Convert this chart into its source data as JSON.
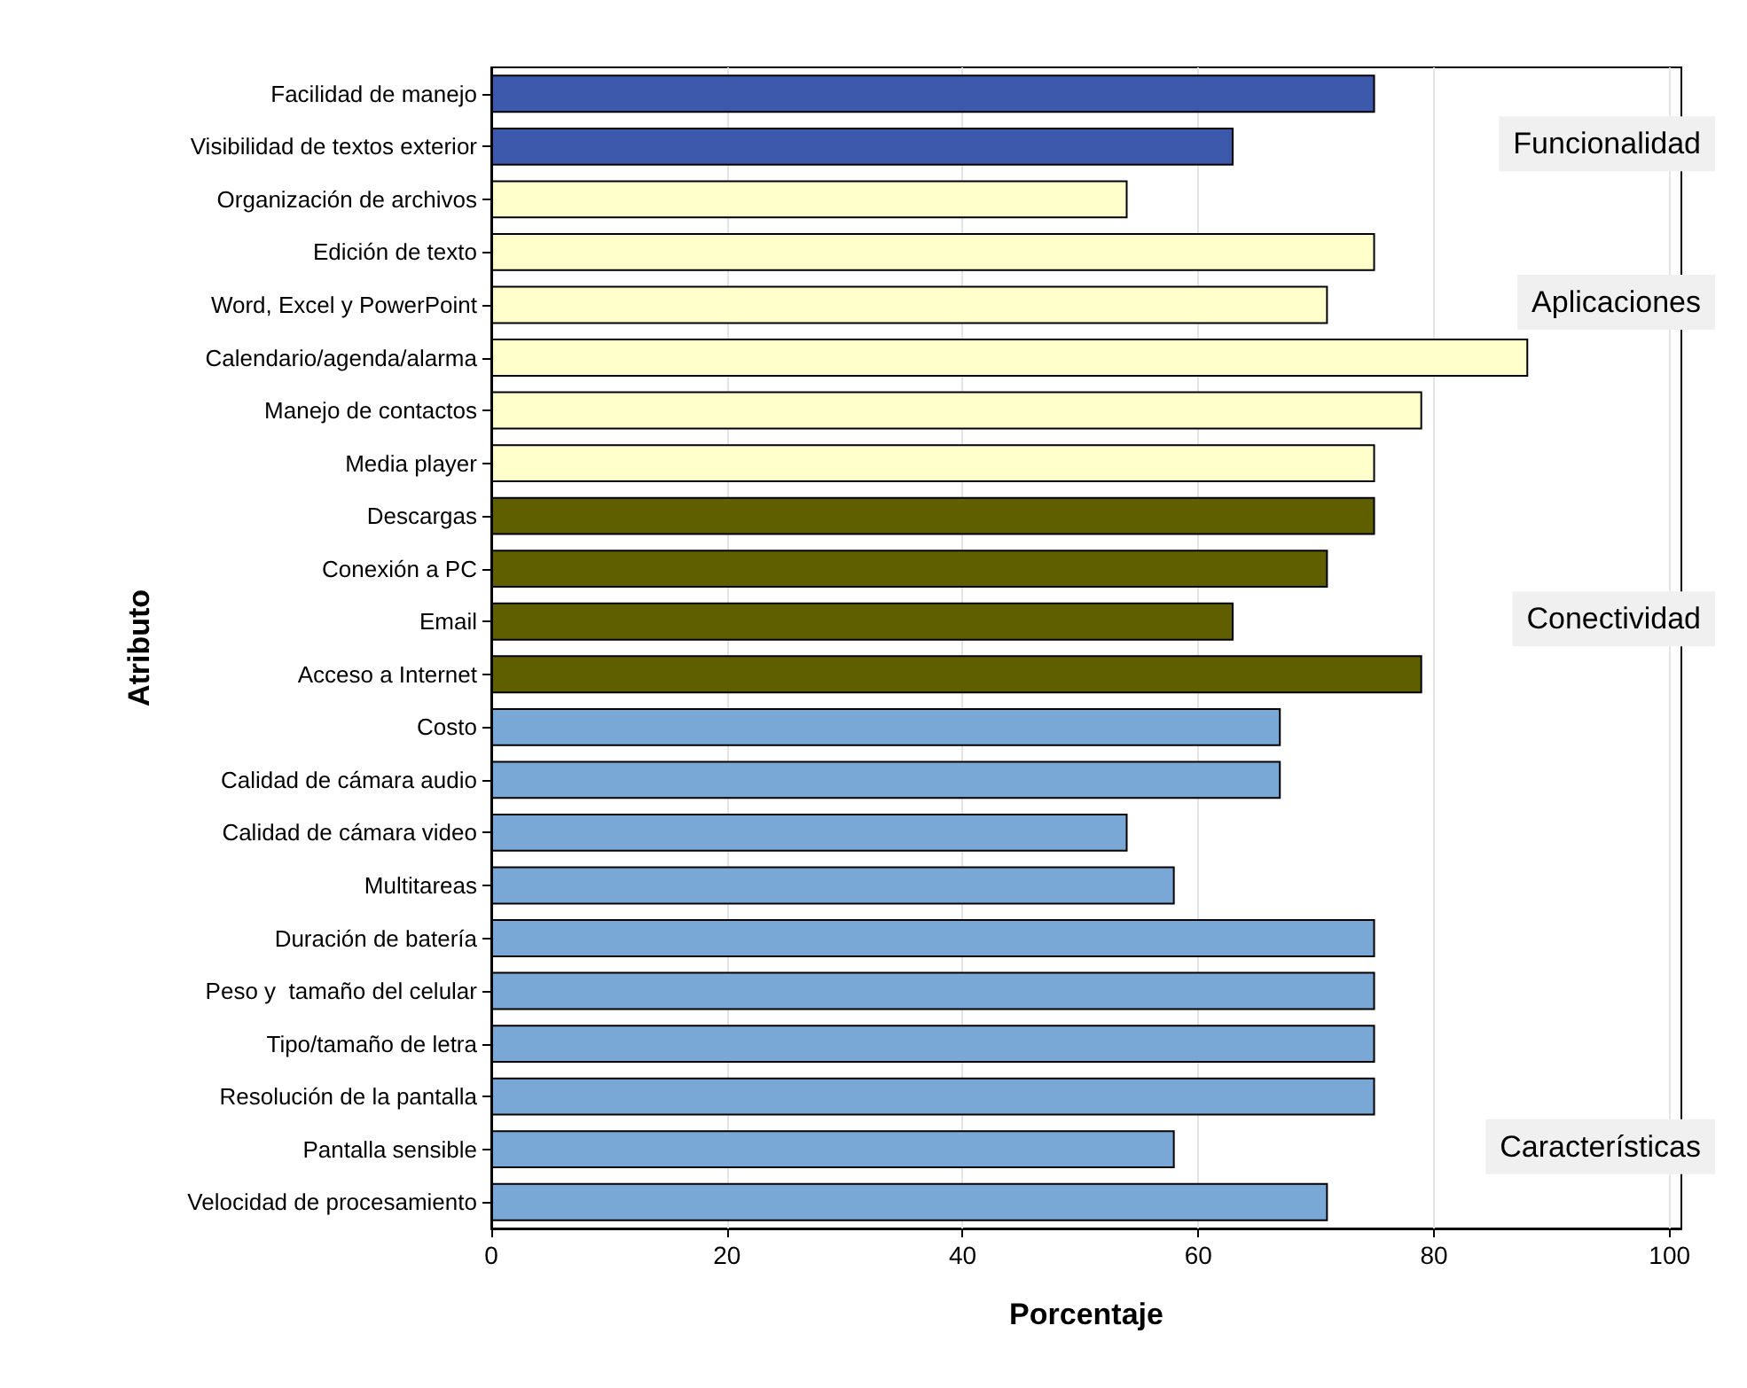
{
  "chart_data": {
    "type": "bar",
    "orientation": "horizontal",
    "xlabel": "Porcentaje",
    "ylabel": "Atributo",
    "categories": [
      "Facilidad de manejo",
      "Visibilidad de textos exterior",
      "Organización de archivos",
      "Edición de texto",
      "Word, Excel y PowerPoint",
      "Calendario/agenda/alarma",
      "Manejo de contactos",
      "Media player",
      "Descargas",
      "Conexión a PC",
      "Email",
      "Acceso a Internet",
      "Costo",
      "Calidad de cámara audio",
      "Calidad de cámara video",
      "Multitareas",
      "Duración de batería",
      "Peso y  tamaño del celular",
      "Tipo/tamaño de letra",
      "Resolución de la pantalla",
      "Pantalla sensible",
      "Velocidad de procesamiento"
    ],
    "values": [
      75,
      63,
      54,
      75,
      71,
      88,
      79,
      75,
      75,
      71,
      63,
      79,
      67,
      67,
      54,
      58,
      75,
      75,
      75,
      75,
      58,
      71
    ],
    "colors": [
      "#3d59ab",
      "#3d59ab",
      "#ffffcc",
      "#ffffcc",
      "#ffffcc",
      "#ffffcc",
      "#ffffcc",
      "#ffffcc",
      "#5f5f00",
      "#5f5f00",
      "#5f5f00",
      "#5f5f00",
      "#7aa8d6",
      "#7aa8d6",
      "#7aa8d6",
      "#7aa8d6",
      "#7aa8d6",
      "#7aa8d6",
      "#7aa8d6",
      "#7aa8d6",
      "#7aa8d6",
      "#7aa8d6"
    ],
    "xlim": [
      0,
      101
    ],
    "xticks": [
      0,
      20,
      40,
      60,
      80,
      100
    ],
    "grid": "x",
    "annotations": [
      "Funcionalidad",
      "Aplicaciones",
      "Conectividad",
      "Características"
    ]
  }
}
